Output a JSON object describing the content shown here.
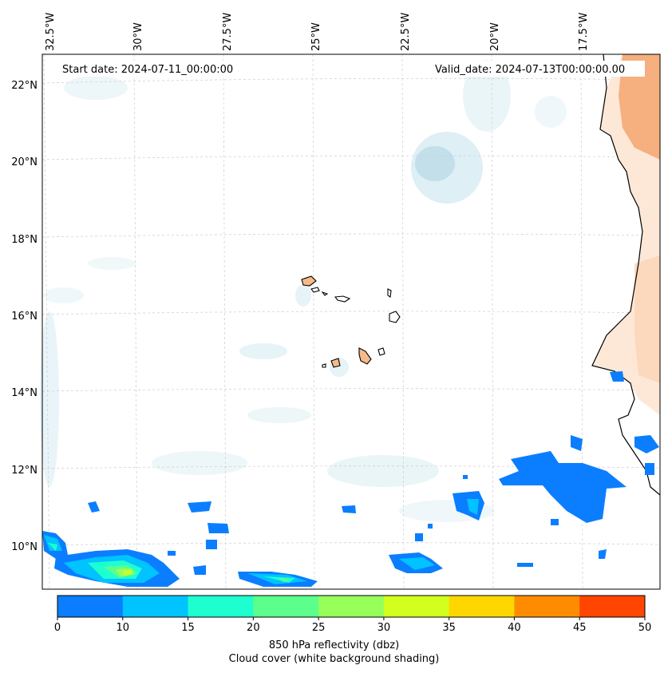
{
  "header": {
    "start_date": "Start date: 2024-07-11_00:00:00",
    "valid_date": "Valid_date: 2024-07-13T00:00:00.00"
  },
  "axes": {
    "lon_labels": [
      "32.5°W",
      "30°W",
      "27.5°W",
      "25°W",
      "22.5°W",
      "20°W",
      "17.5°W"
    ],
    "lat_labels": [
      "22°N",
      "20°N",
      "18°N",
      "16°N",
      "14°N",
      "12°N",
      "10°N"
    ]
  },
  "colorbar": {
    "ticks": [
      "0",
      "10",
      "15",
      "20",
      "25",
      "30",
      "35",
      "40",
      "45",
      "50"
    ],
    "colors": [
      "#0a7eff",
      "#00c3ff",
      "#1effd0",
      "#5cff8c",
      "#96ff5a",
      "#d2ff1e",
      "#ffd700",
      "#ff8c00",
      "#ff4500"
    ],
    "label_line1": "850 hPa reflectivity (dbz)",
    "label_line2": "Cloud cover (white background shading)"
  },
  "colors": {
    "land_orange": "#f5b98a",
    "cloud_blue": "#d6ebf2",
    "grid": "#cccccc"
  }
}
